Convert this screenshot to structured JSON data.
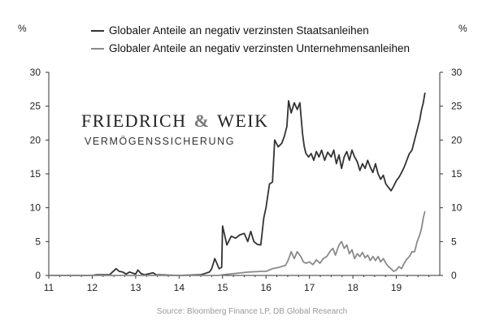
{
  "chart_data": {
    "type": "line",
    "title": "",
    "xlabel": "",
    "ylabel_left": "%",
    "ylabel_right": "%",
    "xlim": [
      11,
      20
    ],
    "ylim": [
      0,
      30
    ],
    "x_ticks": [
      11,
      12,
      13,
      14,
      15,
      16,
      17,
      18,
      19
    ],
    "y_ticks": [
      0,
      5,
      10,
      15,
      20,
      25,
      30
    ],
    "grid": false,
    "legend_position": "top",
    "series": [
      {
        "name": "Globaler Anteile an negativ verzinsten Staatsanleihen",
        "color": "#333333",
        "points": [
          [
            11.0,
            0
          ],
          [
            12.0,
            0
          ],
          [
            12.1,
            0.1
          ],
          [
            12.4,
            0.1
          ],
          [
            12.55,
            1.0
          ],
          [
            12.62,
            0.6
          ],
          [
            12.7,
            0.5
          ],
          [
            12.78,
            0.2
          ],
          [
            12.86,
            0.5
          ],
          [
            12.95,
            0.3
          ],
          [
            13.0,
            0.2
          ],
          [
            13.05,
            0.8
          ],
          [
            13.12,
            0.3
          ],
          [
            13.2,
            0.1
          ],
          [
            13.4,
            0.4
          ],
          [
            13.47,
            0.1
          ],
          [
            14.0,
            0
          ],
          [
            14.5,
            0.1
          ],
          [
            14.7,
            0.5
          ],
          [
            14.75,
            1.0
          ],
          [
            14.82,
            2.5
          ],
          [
            14.92,
            1.0
          ],
          [
            14.98,
            1.2
          ],
          [
            15.0,
            7.3
          ],
          [
            15.1,
            4.5
          ],
          [
            15.2,
            5.8
          ],
          [
            15.3,
            5.5
          ],
          [
            15.4,
            6.0
          ],
          [
            15.5,
            6.2
          ],
          [
            15.58,
            5.0
          ],
          [
            15.65,
            6.5
          ],
          [
            15.72,
            5.0
          ],
          [
            15.8,
            4.6
          ],
          [
            15.88,
            4.5
          ],
          [
            15.95,
            8.5
          ],
          [
            16.0,
            10.0
          ],
          [
            16.08,
            13.5
          ],
          [
            16.15,
            13.8
          ],
          [
            16.2,
            20.0
          ],
          [
            16.28,
            19.0
          ],
          [
            16.36,
            19.5
          ],
          [
            16.42,
            20.5
          ],
          [
            16.48,
            22.0
          ],
          [
            16.52,
            25.8
          ],
          [
            16.58,
            24.0
          ],
          [
            16.65,
            25.5
          ],
          [
            16.72,
            24.5
          ],
          [
            16.78,
            25.5
          ],
          [
            16.84,
            21.0
          ],
          [
            16.88,
            19.0
          ],
          [
            16.92,
            18.0
          ],
          [
            16.98,
            17.5
          ],
          [
            17.04,
            18.0
          ],
          [
            17.1,
            17.0
          ],
          [
            17.16,
            18.3
          ],
          [
            17.22,
            17.5
          ],
          [
            17.28,
            18.5
          ],
          [
            17.35,
            17.0
          ],
          [
            17.42,
            18.2
          ],
          [
            17.5,
            17.5
          ],
          [
            17.56,
            18.5
          ],
          [
            17.62,
            16.5
          ],
          [
            17.68,
            17.8
          ],
          [
            17.74,
            15.8
          ],
          [
            17.8,
            17.5
          ],
          [
            17.86,
            18.3
          ],
          [
            17.92,
            17.0
          ],
          [
            17.98,
            18.5
          ],
          [
            18.04,
            17.5
          ],
          [
            18.1,
            16.8
          ],
          [
            18.16,
            15.5
          ],
          [
            18.22,
            16.5
          ],
          [
            18.28,
            15.8
          ],
          [
            18.34,
            17.0
          ],
          [
            18.4,
            16.0
          ],
          [
            18.46,
            15.2
          ],
          [
            18.52,
            16.5
          ],
          [
            18.58,
            15.0
          ],
          [
            18.64,
            14.2
          ],
          [
            18.7,
            14.8
          ],
          [
            18.76,
            13.5
          ],
          [
            18.82,
            13.0
          ],
          [
            18.88,
            12.5
          ],
          [
            18.94,
            13.2
          ],
          [
            19.0,
            14.0
          ],
          [
            19.06,
            14.5
          ],
          [
            19.12,
            15.2
          ],
          [
            19.18,
            16.0
          ],
          [
            19.24,
            17.0
          ],
          [
            19.3,
            18.0
          ],
          [
            19.36,
            18.5
          ],
          [
            19.42,
            20.0
          ],
          [
            19.48,
            21.5
          ],
          [
            19.54,
            23.0
          ],
          [
            19.58,
            24.5
          ],
          [
            19.62,
            25.5
          ],
          [
            19.66,
            27.0
          ]
        ]
      },
      {
        "name": "Globaler Anteile an negativ verzinsten Unternehmensanleihen",
        "color": "#8a8a8a",
        "points": [
          [
            11.0,
            0
          ],
          [
            14.9,
            0
          ],
          [
            15.0,
            0.1
          ],
          [
            15.3,
            0.3
          ],
          [
            15.6,
            0.5
          ],
          [
            15.9,
            0.6
          ],
          [
            16.0,
            0.6
          ],
          [
            16.15,
            1.0
          ],
          [
            16.3,
            1.2
          ],
          [
            16.45,
            1.5
          ],
          [
            16.52,
            2.4
          ],
          [
            16.58,
            3.5
          ],
          [
            16.65,
            2.5
          ],
          [
            16.72,
            3.5
          ],
          [
            16.8,
            2.8
          ],
          [
            16.86,
            2.0
          ],
          [
            16.92,
            1.8
          ],
          [
            17.0,
            2.0
          ],
          [
            17.08,
            1.6
          ],
          [
            17.16,
            2.3
          ],
          [
            17.24,
            1.8
          ],
          [
            17.32,
            2.5
          ],
          [
            17.4,
            2.8
          ],
          [
            17.48,
            3.6
          ],
          [
            17.54,
            4.0
          ],
          [
            17.6,
            3.0
          ],
          [
            17.68,
            4.5
          ],
          [
            17.74,
            5.0
          ],
          [
            17.8,
            4.0
          ],
          [
            17.86,
            4.5
          ],
          [
            17.92,
            3.2
          ],
          [
            17.98,
            3.8
          ],
          [
            18.04,
            2.5
          ],
          [
            18.1,
            3.2
          ],
          [
            18.16,
            2.8
          ],
          [
            18.22,
            3.4
          ],
          [
            18.28,
            2.6
          ],
          [
            18.34,
            3.0
          ],
          [
            18.4,
            2.2
          ],
          [
            18.46,
            2.8
          ],
          [
            18.52,
            2.2
          ],
          [
            18.58,
            2.8
          ],
          [
            18.64,
            2.0
          ],
          [
            18.7,
            2.5
          ],
          [
            18.76,
            1.8
          ],
          [
            18.82,
            1.3
          ],
          [
            18.88,
            1.0
          ],
          [
            18.94,
            0.6
          ],
          [
            19.0,
            0.8
          ],
          [
            19.06,
            1.3
          ],
          [
            19.12,
            1.0
          ],
          [
            19.18,
            1.8
          ],
          [
            19.24,
            2.4
          ],
          [
            19.3,
            2.8
          ],
          [
            19.36,
            3.5
          ],
          [
            19.42,
            3.5
          ],
          [
            19.48,
            5.0
          ],
          [
            19.54,
            6.0
          ],
          [
            19.58,
            7.0
          ],
          [
            19.62,
            8.5
          ],
          [
            19.66,
            9.5
          ]
        ]
      }
    ]
  },
  "brand": {
    "name_part1": "FRIEDRICH",
    "ampersand": "&",
    "name_part2": "WEIK",
    "tagline": "VERMÖGENSSICHERUNG"
  },
  "source": "Source: Bloomberg Finance LP, DB Global Research"
}
